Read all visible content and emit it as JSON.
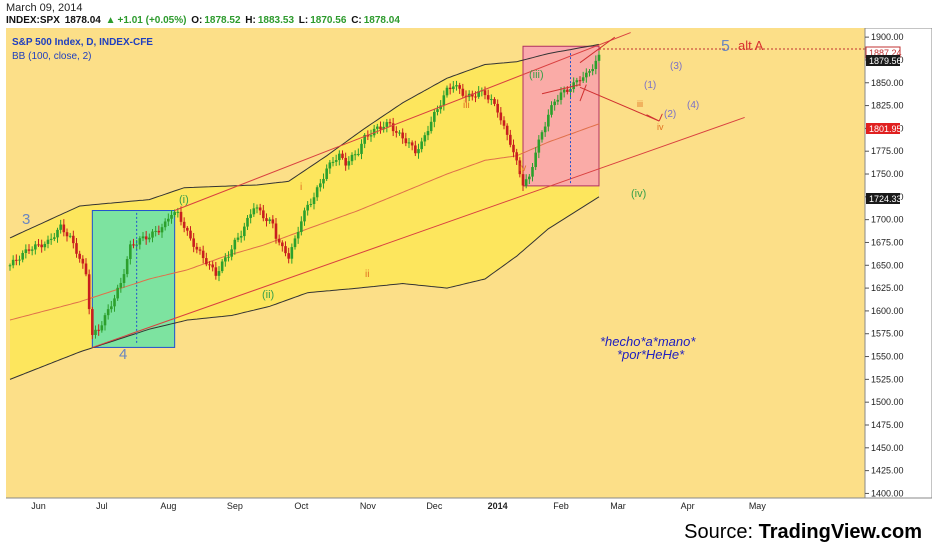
{
  "header": {
    "date": "March 09, 2014",
    "symbol": "INDEX:SPX",
    "last": "1878.04",
    "change": "+1.01 (+0.05%)",
    "open_label": "O:",
    "open": "1878.52",
    "high_label": "H:",
    "high": "1883.53",
    "low_label": "L:",
    "low": "1870.56",
    "close_label": "C:",
    "close": "1878.04"
  },
  "legend": {
    "title": "S&P 500 Index, D, INDEX-CFE",
    "indicator": "BB (100, close, 2)"
  },
  "annotations": {
    "wave_3": "3",
    "wave_4": "4",
    "wave_5": "5",
    "alt_a": "alt A",
    "i_green": "(i)",
    "ii_green": "(ii)",
    "iii_green": "(iii)",
    "iv_green": "(iv)",
    "i_orange": "i",
    "ii_orange": "ii",
    "iii_orange": "iii",
    "iv_orange": "iv",
    "iii_small": "iii",
    "iv_small": "iv",
    "p1": "(1)",
    "p2": "(2)",
    "p3": "(3)",
    "p4": "(4)",
    "note_line1": "*hecho*a*mano*",
    "note_line2": "*por*HeHe*"
  },
  "price_tags": {
    "tag1": "1887.24",
    "tag2": "1879.56",
    "tag3": "1801.95",
    "tag4": "1724.33"
  },
  "source": {
    "label": "Source:",
    "brand": "TradingView.com"
  },
  "colors": {
    "band_fill": "#fde65d",
    "background": "#fcdf88",
    "green_box": "#7de3a0",
    "pink_box": "#f9a0b4",
    "up_candle": "#2ca02c",
    "down_candle": "#c81e1e",
    "wave_label": "#6a86c0",
    "trend_line": "#d94040"
  },
  "chart_data": {
    "type": "candlestick",
    "title": "S&P 500 Index, D, INDEX-CFE",
    "ylim": [
      1395,
      1910
    ],
    "y_ticks": [
      1400,
      1425,
      1450,
      1475,
      1500,
      1525,
      1550,
      1575,
      1600,
      1625,
      1650,
      1675,
      1700,
      1725,
      1750,
      1775,
      1800,
      1825,
      1850,
      1875,
      1900
    ],
    "x_ticks": [
      "Jun",
      "Jul",
      "Aug",
      "Sep",
      "Oct",
      "Nov",
      "Dec",
      "2014",
      "Feb",
      "Mar",
      "Apr",
      "May"
    ],
    "close_path": [
      [
        0,
        1650
      ],
      [
        6,
        1668
      ],
      [
        12,
        1675
      ],
      [
        16,
        1692
      ],
      [
        19,
        1680
      ],
      [
        22,
        1658
      ],
      [
        24,
        1640
      ],
      [
        25,
        1605
      ],
      [
        26,
        1573
      ],
      [
        28,
        1580
      ],
      [
        31,
        1600
      ],
      [
        33,
        1615
      ],
      [
        35,
        1630
      ],
      [
        38,
        1670
      ],
      [
        41,
        1678
      ],
      [
        44,
        1682
      ],
      [
        47,
        1689
      ],
      [
        49,
        1695
      ],
      [
        51,
        1708
      ],
      [
        53,
        1706
      ],
      [
        55,
        1693
      ],
      [
        57,
        1678
      ],
      [
        59,
        1668
      ],
      [
        61,
        1658
      ],
      [
        63,
        1650
      ],
      [
        65,
        1640
      ],
      [
        67,
        1652
      ],
      [
        69,
        1662
      ],
      [
        71,
        1675
      ],
      [
        73,
        1685
      ],
      [
        75,
        1699
      ],
      [
        77,
        1715
      ],
      [
        79,
        1708
      ],
      [
        81,
        1700
      ],
      [
        83,
        1695
      ],
      [
        84,
        1682
      ],
      [
        86,
        1668
      ],
      [
        88,
        1660
      ],
      [
        90,
        1677
      ],
      [
        92,
        1700
      ],
      [
        94,
        1715
      ],
      [
        96,
        1725
      ],
      [
        98,
        1740
      ],
      [
        100,
        1755
      ],
      [
        102,
        1765
      ],
      [
        104,
        1770
      ],
      [
        106,
        1762
      ],
      [
        108,
        1768
      ],
      [
        110,
        1775
      ],
      [
        112,
        1790
      ],
      [
        114,
        1795
      ],
      [
        116,
        1800
      ],
      [
        118,
        1803
      ],
      [
        120,
        1805
      ],
      [
        122,
        1795
      ],
      [
        124,
        1790
      ],
      [
        126,
        1783
      ],
      [
        128,
        1775
      ],
      [
        130,
        1783
      ],
      [
        132,
        1800
      ],
      [
        134,
        1815
      ],
      [
        136,
        1828
      ],
      [
        138,
        1842
      ],
      [
        140,
        1848
      ],
      [
        142,
        1842
      ],
      [
        144,
        1835
      ],
      [
        146,
        1835
      ],
      [
        148,
        1840
      ],
      [
        150,
        1838
      ],
      [
        152,
        1830
      ],
      [
        154,
        1820
      ],
      [
        156,
        1800
      ],
      [
        158,
        1785
      ],
      [
        160,
        1762
      ],
      [
        162,
        1740
      ],
      [
        164,
        1745
      ],
      [
        166,
        1775
      ],
      [
        168,
        1795
      ],
      [
        170,
        1815
      ],
      [
        172,
        1830
      ],
      [
        174,
        1838
      ],
      [
        176,
        1842
      ],
      [
        178,
        1848
      ],
      [
        180,
        1855
      ],
      [
        182,
        1858
      ],
      [
        184,
        1868
      ],
      [
        186,
        1878
      ]
    ],
    "bb_upper": [
      [
        0,
        1680
      ],
      [
        22,
        1715
      ],
      [
        44,
        1722
      ],
      [
        55,
        1735
      ],
      [
        78,
        1738
      ],
      [
        88,
        1742
      ],
      [
        100,
        1770
      ],
      [
        112,
        1800
      ],
      [
        124,
        1828
      ],
      [
        138,
        1855
      ],
      [
        150,
        1870
      ],
      [
        160,
        1873
      ],
      [
        170,
        1882
      ],
      [
        186,
        1892
      ]
    ],
    "bb_mid": [
      [
        0,
        1590
      ],
      [
        22,
        1610
      ],
      [
        44,
        1635
      ],
      [
        56,
        1645
      ],
      [
        68,
        1660
      ],
      [
        80,
        1672
      ],
      [
        94,
        1690
      ],
      [
        110,
        1710
      ],
      [
        124,
        1730
      ],
      [
        138,
        1750
      ],
      [
        150,
        1765
      ],
      [
        160,
        1770
      ],
      [
        170,
        1785
      ],
      [
        186,
        1805
      ]
    ],
    "bb_lower": [
      [
        0,
        1525
      ],
      [
        22,
        1555
      ],
      [
        44,
        1580
      ],
      [
        56,
        1590
      ],
      [
        70,
        1595
      ],
      [
        82,
        1605
      ],
      [
        94,
        1620
      ],
      [
        110,
        1625
      ],
      [
        124,
        1630
      ],
      [
        138,
        1625
      ],
      [
        150,
        1635
      ],
      [
        160,
        1660
      ],
      [
        170,
        1690
      ],
      [
        186,
        1725
      ]
    ]
  }
}
